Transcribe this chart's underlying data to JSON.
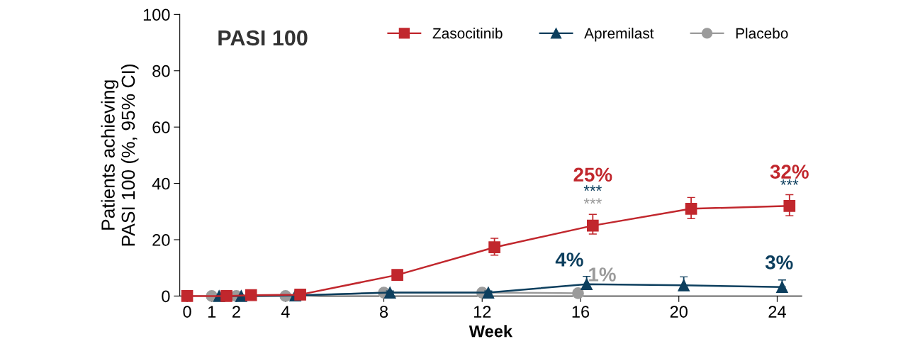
{
  "chart_data": {
    "type": "line",
    "title": "PASI 100",
    "xlabel": "Week",
    "ylabel": "Patients achieving\nPASI 100 (%, 95% CI)",
    "xlim": [
      -0.3,
      25
    ],
    "xticks": [
      0,
      1,
      2,
      4,
      8,
      12,
      16,
      20,
      24
    ],
    "ylim": [
      0,
      100
    ],
    "yticks": [
      0,
      20,
      40,
      60,
      80,
      100
    ],
    "grid": false,
    "legend": "top right",
    "line_style": "solid",
    "series": [
      {
        "name": "Zasocitinib",
        "color": "#c1272d",
        "marker": "square",
        "x": [
          0,
          1.6,
          2.6,
          4.6,
          8.55,
          12.5,
          16.5,
          20.5,
          24.5
        ],
        "values": [
          0,
          0,
          0.3,
          0.5,
          7.5,
          17.3,
          25,
          31,
          32
        ],
        "errors": [
          null,
          null,
          null,
          null,
          null,
          [
            14.5,
            20.5
          ],
          [
            22,
            29
          ],
          [
            27.5,
            35
          ],
          [
            28.5,
            36
          ]
        ],
        "value_labels": [
          null,
          null,
          null,
          null,
          null,
          null,
          "25%",
          null,
          "32%"
        ]
      },
      {
        "name": "Apremilast",
        "color": "#0d3f5e",
        "marker": "triangle",
        "x": [
          1.3,
          2.2,
          4.4,
          8.25,
          12.25,
          16.25,
          20.2,
          24.2
        ],
        "values": [
          0,
          0,
          0.2,
          1.2,
          1.2,
          4.2,
          3.8,
          3.2
        ],
        "errors": [
          null,
          null,
          null,
          [
            1.2,
            1.8
          ],
          [
            1.2,
            1.8
          ],
          [
            4.2,
            7
          ],
          [
            3.8,
            6.8
          ],
          [
            3.2,
            5.7
          ]
        ],
        "value_labels": [
          null,
          null,
          null,
          null,
          null,
          "4%",
          null,
          "3%"
        ]
      },
      {
        "name": "Placebo",
        "color": "#9b9b9b",
        "marker": "circle",
        "x": [
          1,
          2,
          4,
          8,
          12,
          15.9
        ],
        "values": [
          0,
          0,
          0,
          1.2,
          1.2,
          1.0
        ],
        "value_labels": [
          null,
          null,
          null,
          null,
          null,
          "1%"
        ]
      }
    ],
    "annotations": [
      "***",
      "***",
      "***"
    ]
  }
}
